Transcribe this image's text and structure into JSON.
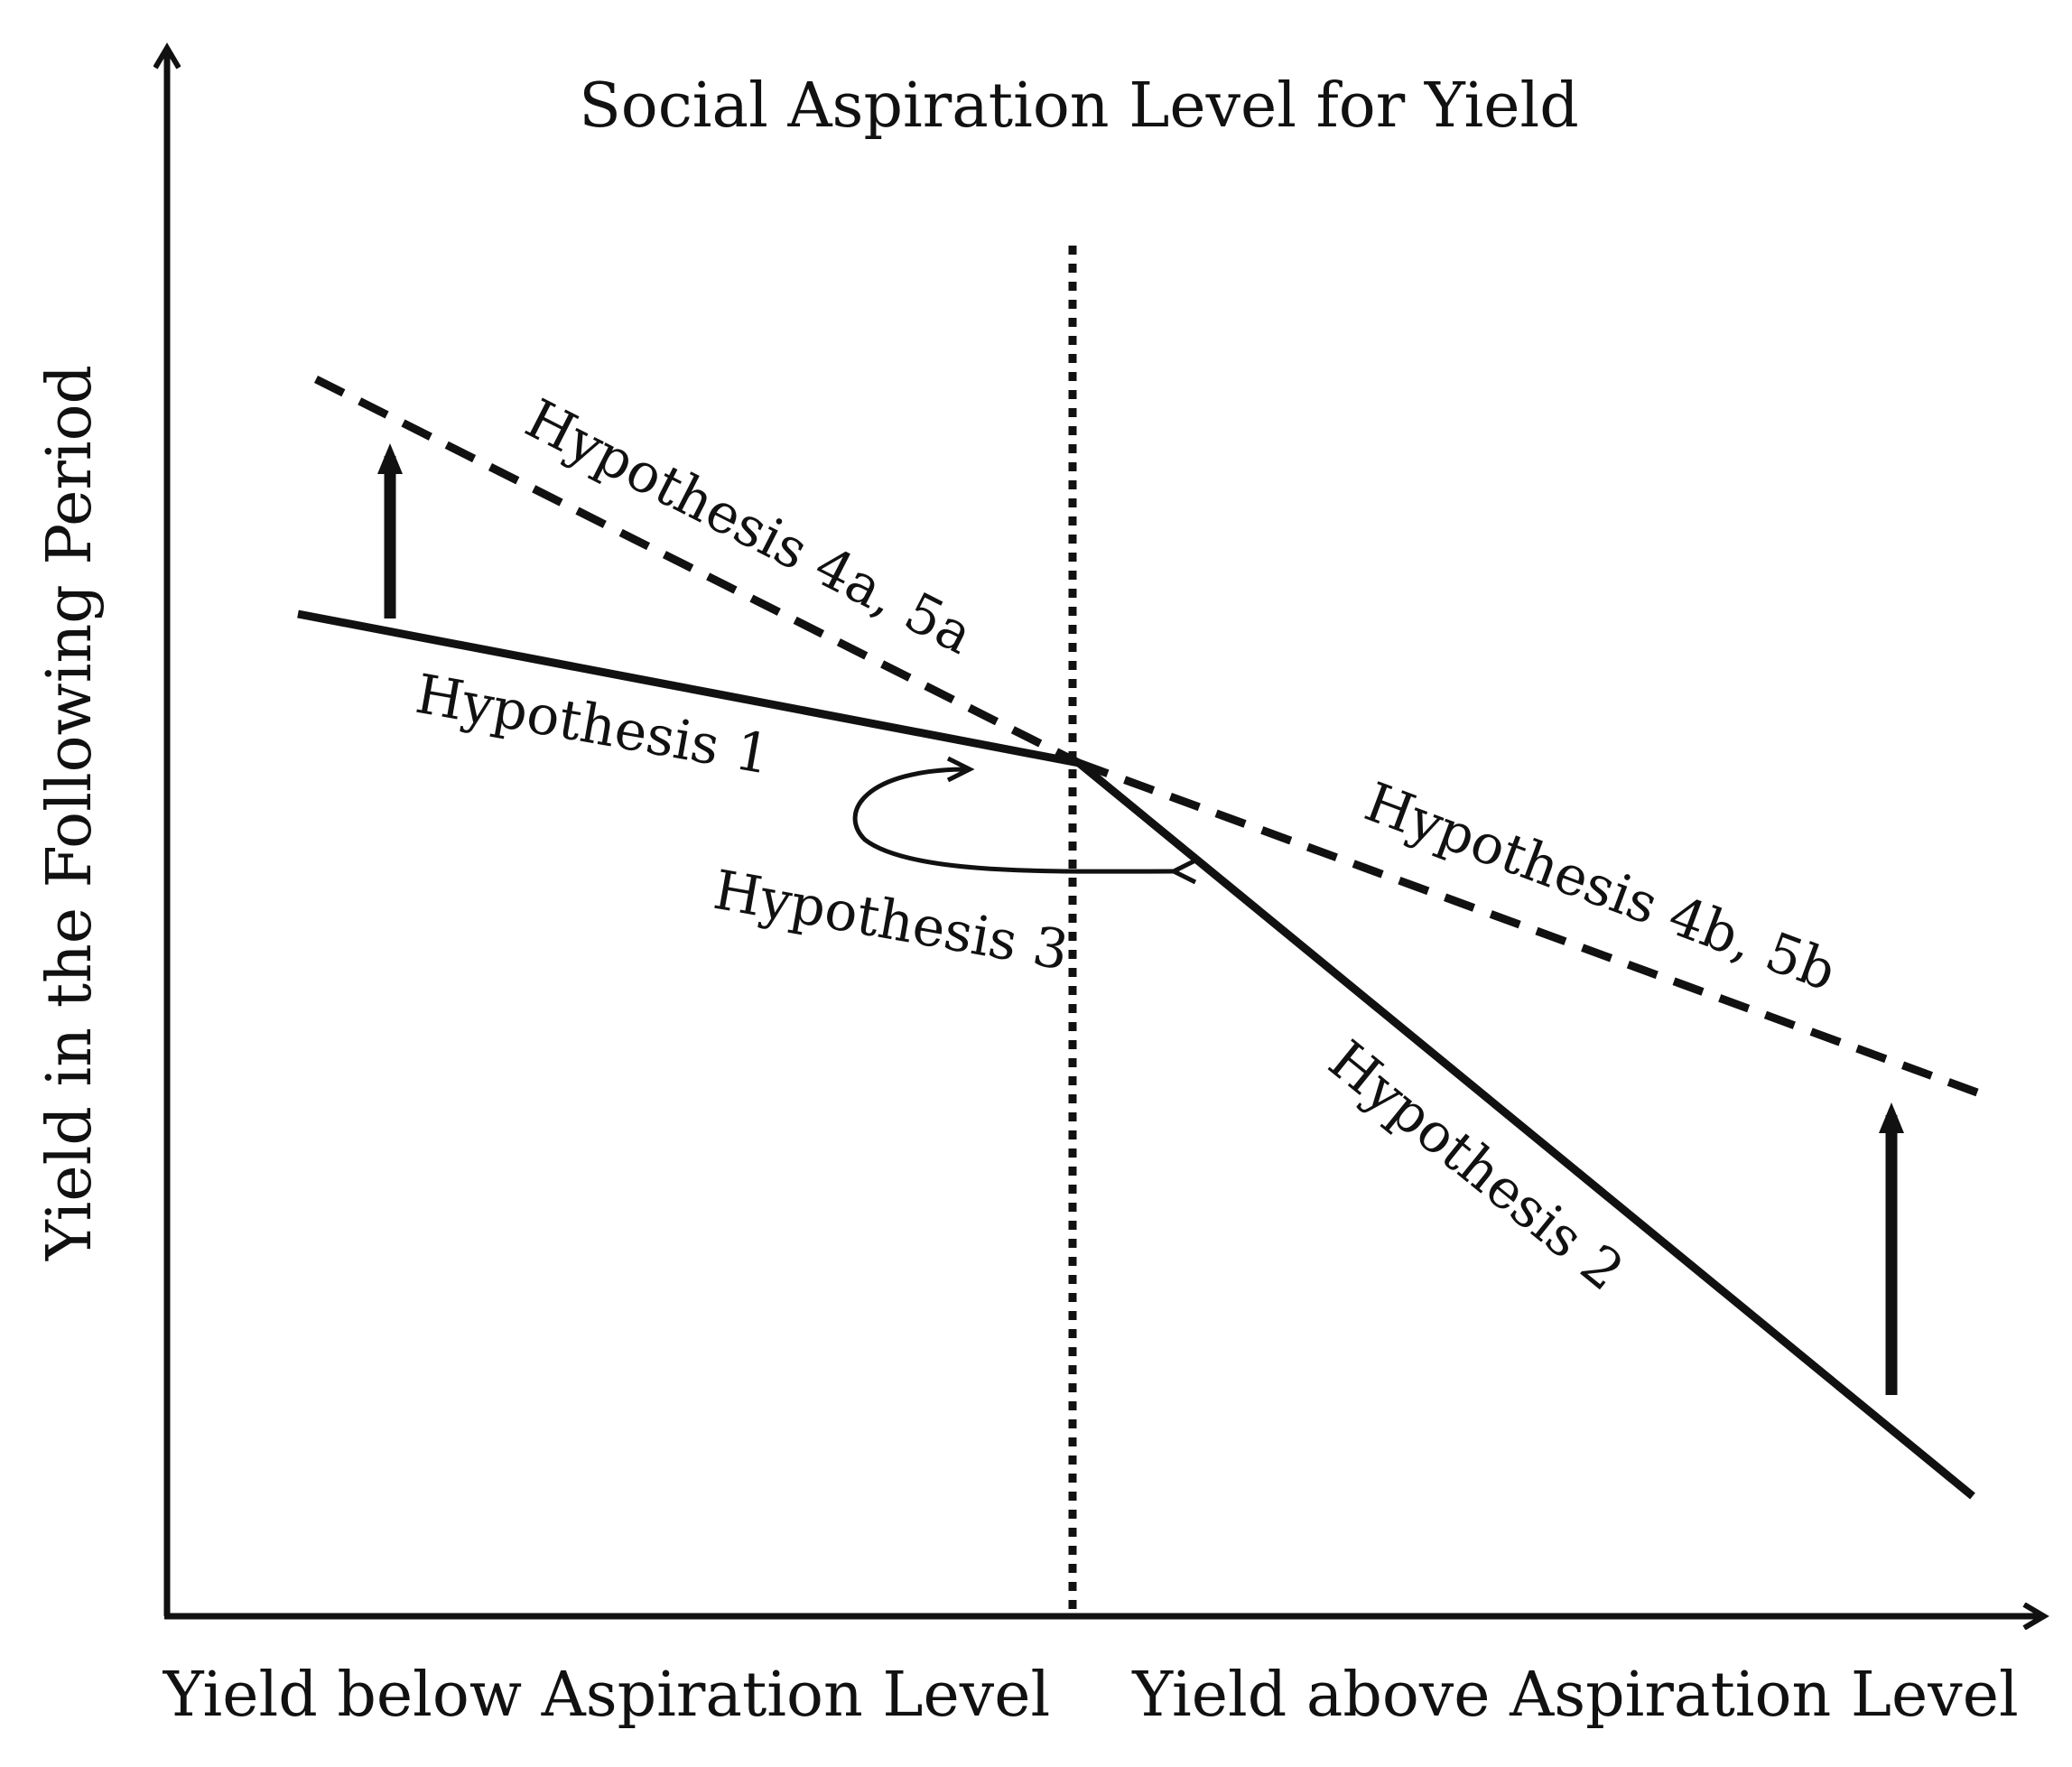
{
  "title": "Social Aspiration Level for Yield",
  "y_axis_label": "Yield in the Following Period",
  "x_axis_labels": {
    "below": "Yield below Aspiration Level",
    "above": "Yield above Aspiration Level"
  },
  "hypotheses": {
    "h1": "Hypothesis 1",
    "h2": "Hypothesis 2",
    "h3": "Hypothesis 3",
    "h4a5a": "Hypothesis 4a, 5a",
    "h4b5b": "Hypothesis 4b, 5b"
  },
  "colors": {
    "ink": "#111111",
    "background": "#ffffff"
  }
}
